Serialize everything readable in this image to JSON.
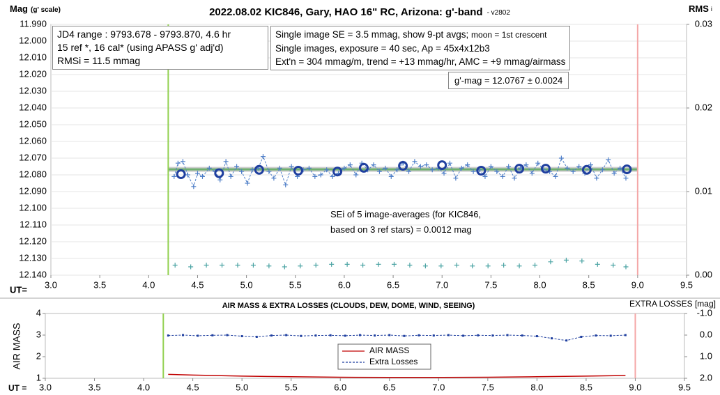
{
  "chart_data": [
    {
      "type": "scatter",
      "title": "2022.08.02 KIC846, Gary, HAO 16\" RC, Arizona: g'-band",
      "title_suffix": "- v2802",
      "y_label": "Mag",
      "y_label_note": "(g' scale)",
      "y2_label": "RMS",
      "y2_label_sub": "i",
      "x_label": "UT=",
      "xlim": [
        3.0,
        9.5
      ],
      "xticks": [
        {
          "value": 3,
          "label": "3.0"
        },
        {
          "value": 3.5,
          "label": "3.5"
        },
        {
          "value": 4,
          "label": "4.0"
        },
        {
          "value": 4.5,
          "label": "4.5"
        },
        {
          "value": 5,
          "label": "5.0"
        },
        {
          "value": 5.5,
          "label": "5.5"
        },
        {
          "value": 6,
          "label": "6.0"
        },
        {
          "value": 6.5,
          "label": "6.5"
        },
        {
          "value": 7,
          "label": "7.0"
        },
        {
          "value": 7.5,
          "label": "7.5"
        },
        {
          "value": 8,
          "label": "8.0"
        },
        {
          "value": 8.5,
          "label": "8.5"
        },
        {
          "value": 9,
          "label": "9.0"
        },
        {
          "value": 9.5,
          "label": "9.5"
        }
      ],
      "ylim": [
        12.14,
        11.99
      ],
      "yticks": [
        {
          "value": 11.99,
          "label": "11.990"
        },
        {
          "value": 12.0,
          "label": "12.000"
        },
        {
          "value": 12.01,
          "label": "12.010"
        },
        {
          "value": 12.02,
          "label": "12.020"
        },
        {
          "value": 12.03,
          "label": "12.030"
        },
        {
          "value": 12.04,
          "label": "12.040"
        },
        {
          "value": 12.05,
          "label": "12.050"
        },
        {
          "value": 12.06,
          "label": "12.060"
        },
        {
          "value": 12.07,
          "label": "12.070"
        },
        {
          "value": 12.08,
          "label": "12.080"
        },
        {
          "value": 12.09,
          "label": "12.090"
        },
        {
          "value": 12.1,
          "label": "12.100"
        },
        {
          "value": 12.11,
          "label": "12.110"
        },
        {
          "value": 12.12,
          "label": "12.120"
        },
        {
          "value": 12.13,
          "label": "12.130"
        },
        {
          "value": 12.14,
          "label": "12.140"
        }
      ],
      "y2lim": [
        0,
        0.03
      ],
      "y2ticks": [
        {
          "value": 0,
          "label": "0.00"
        },
        0.01,
        0.02,
        0.03
      ],
      "grid": true,
      "vlines": [
        {
          "x": 4.2,
          "color": "#92d050"
        },
        {
          "x": 9.0,
          "color": "#f4a6a6"
        }
      ],
      "hlines": [
        {
          "y": 12.0767,
          "color": "#70b070"
        }
      ],
      "series": [
        {
          "marker": "plus",
          "line": "dashed",
          "color": "#4f7fc8",
          "x": [
            4.26,
            4.3,
            4.35,
            4.4,
            4.46,
            4.5,
            4.55,
            4.62,
            4.68,
            4.73,
            4.79,
            4.84,
            4.9,
            4.95,
            5.01,
            5.06,
            5.12,
            5.17,
            5.23,
            5.28,
            5.34,
            5.4,
            5.46,
            5.52,
            5.58,
            5.64,
            5.7,
            5.76,
            5.82,
            5.88,
            5.94,
            6.0,
            6.06,
            6.12,
            6.18,
            6.24,
            6.3,
            6.36,
            6.42,
            6.48,
            6.54,
            6.6,
            6.66,
            6.72,
            6.78,
            6.84,
            6.9,
            6.96,
            7.02,
            7.08,
            7.14,
            7.2,
            7.26,
            7.32,
            7.38,
            7.44,
            7.5,
            7.56,
            7.62,
            7.68,
            7.74,
            7.8,
            7.86,
            7.92,
            7.98,
            8.04,
            8.1,
            8.16,
            8.22,
            8.28,
            8.34,
            8.4,
            8.46,
            8.52,
            8.58,
            8.64,
            8.7,
            8.76,
            8.82,
            8.88
          ],
          "values": [
            12.081,
            12.073,
            12.072,
            12.08,
            12.087,
            12.079,
            12.081,
            12.076,
            12.078,
            12.083,
            12.072,
            12.081,
            12.075,
            12.078,
            12.085,
            12.077,
            12.076,
            12.069,
            12.078,
            12.082,
            12.076,
            12.086,
            12.075,
            12.081,
            12.077,
            12.076,
            12.081,
            12.08,
            12.077,
            12.081,
            12.079,
            12.076,
            12.074,
            12.08,
            12.073,
            12.077,
            12.074,
            12.078,
            12.076,
            12.081,
            12.077,
            12.073,
            12.078,
            12.072,
            12.075,
            12.074,
            12.077,
            12.076,
            12.079,
            12.073,
            12.082,
            12.076,
            12.074,
            12.078,
            12.077,
            12.081,
            12.075,
            12.078,
            12.081,
            12.075,
            12.082,
            12.076,
            12.074,
            12.079,
            12.073,
            12.077,
            12.078,
            12.081,
            12.07,
            12.076,
            12.078,
            12.075,
            12.079,
            12.074,
            12.082,
            12.077,
            12.071,
            12.079,
            12.076,
            12.082
          ]
        },
        {
          "marker": "circle",
          "line": "none",
          "color": "#1f3f9f",
          "x": [
            4.33,
            4.72,
            5.13,
            5.53,
            5.93,
            6.2,
            6.6,
            7.0,
            7.4,
            7.79,
            8.06,
            8.48,
            8.89
          ],
          "values": [
            12.0796,
            12.079,
            12.077,
            12.0775,
            12.078,
            12.0758,
            12.0746,
            12.0742,
            12.0775,
            12.0763,
            12.0763,
            12.077,
            12.0767
          ]
        },
        {
          "marker": "plus",
          "line": "none",
          "color": "#4aa3a3",
          "axis": "y2",
          "x": [
            4.27,
            4.43,
            4.59,
            4.75,
            4.91,
            5.07,
            5.23,
            5.39,
            5.55,
            5.71,
            5.87,
            6.03,
            6.19,
            6.35,
            6.51,
            6.67,
            6.83,
            6.99,
            7.15,
            7.31,
            7.47,
            7.63,
            7.79,
            7.95,
            8.11,
            8.27,
            8.43,
            8.59,
            8.75,
            8.88
          ],
          "values": [
            0.0012,
            0.001,
            0.0012,
            0.0012,
            0.0012,
            0.0012,
            0.0011,
            0.001,
            0.0011,
            0.0012,
            0.0013,
            0.0013,
            0.0012,
            0.0013,
            0.0013,
            0.0012,
            0.0011,
            0.0011,
            0.0012,
            0.0011,
            0.0011,
            0.0012,
            0.0011,
            0.0012,
            0.0016,
            0.0018,
            0.0017,
            0.0013,
            0.0012,
            0.001
          ]
        }
      ],
      "annotations": [
        {
          "lines": [
            "JD4 range : 9793.678 - 9793.870,  4.6 hr",
            "15 ref *, 16 cal* (using APASS g' adj'd)",
            "RMSi = 11.5 mmag"
          ]
        },
        {
          "lines": [
            "Single image SE = 3.5 mmag, show  9-pt avgs;",
            "Single images, exposure = 40 sec, Ap = 45x4x12b3",
            "Ext'n = 304 mmag/m, trend = +13 mmag/hr, AMC = +9 mmag/airmass"
          ],
          "note": "moon = 1st crescent"
        },
        {
          "lines": [
            "g'-mag = 12.0767 ± 0.0024"
          ]
        },
        {
          "lines": [
            "SEi of 5 image-averages (for KIC846,",
            "based on 3 ref stars) = 0.0012 mag"
          ]
        }
      ]
    },
    {
      "type": "line",
      "title": "AIR MASS & EXTRA LOSSES (CLOUDS, DEW, DOME, WIND, SEEING)",
      "y_label": "AIR MASS",
      "y2_label": "EXTRA LOSSES [mag]",
      "x_label": "UT =",
      "xlim": [
        3.0,
        9.5
      ],
      "xticks": [
        {
          "value": 3,
          "label": "3.0"
        },
        {
          "value": 3.5,
          "label": "3.5"
        },
        {
          "value": 4,
          "label": "4.0"
        },
        {
          "value": 4.5,
          "label": "4.5"
        },
        {
          "value": 5,
          "label": "5.0"
        },
        {
          "value": 5.5,
          "label": "5.5"
        },
        {
          "value": 6,
          "label": "6.0"
        },
        {
          "value": 6.5,
          "label": "6.5"
        },
        {
          "value": 7,
          "label": "7.0"
        },
        {
          "value": 7.5,
          "label": "7.5"
        },
        {
          "value": 8,
          "label": "8.0"
        },
        {
          "value": 8.5,
          "label": "8.5"
        },
        {
          "value": 9,
          "label": "9.0"
        },
        {
          "value": 9.5,
          "label": "9.5"
        }
      ],
      "ylim": [
        1,
        4
      ],
      "yticks": [
        1,
        2,
        3,
        4
      ],
      "y2lim": [
        2.0,
        -1.0
      ],
      "y2ticks": [
        {
          "value": -1,
          "label": "-1.0"
        },
        {
          "value": 0,
          "label": "0.0"
        },
        {
          "value": 1,
          "label": "1.0"
        },
        {
          "value": 2,
          "label": "2.0"
        }
      ],
      "grid": false,
      "legend": "center",
      "vlines": [
        {
          "x": 4.2,
          "color": "#92d050"
        },
        {
          "x": 9.0,
          "color": "#f4a6a6"
        }
      ],
      "hlines": [],
      "series": [
        {
          "name": "AIR MASS",
          "marker": "none",
          "line": "solid",
          "color": "#c00000",
          "x": [
            4.25,
            4.5,
            5.0,
            5.5,
            6.0,
            6.5,
            7.0,
            7.5,
            8.0,
            8.5,
            8.9
          ],
          "values": [
            1.18,
            1.15,
            1.1,
            1.07,
            1.05,
            1.04,
            1.04,
            1.05,
            1.07,
            1.1,
            1.13
          ]
        },
        {
          "name": "Extra Losses",
          "marker": "dot",
          "line": "dashed",
          "color": "#1f3f9f",
          "axis": "y2",
          "x": [
            4.25,
            4.4,
            4.55,
            4.7,
            4.85,
            5.0,
            5.15,
            5.3,
            5.45,
            5.6,
            5.75,
            5.9,
            6.05,
            6.2,
            6.35,
            6.5,
            6.65,
            6.8,
            6.95,
            7.1,
            7.25,
            7.4,
            7.55,
            7.7,
            7.85,
            8.0,
            8.15,
            8.3,
            8.45,
            8.6,
            8.75,
            8.9
          ],
          "values": [
            0.02,
            0.0,
            0.03,
            0.01,
            0.0,
            0.05,
            0.08,
            0.02,
            0.0,
            0.04,
            0.02,
            0.01,
            0.03,
            0.0,
            0.02,
            0.0,
            0.04,
            0.01,
            0.02,
            0.0,
            0.03,
            0.01,
            0.02,
            0.0,
            0.02,
            0.05,
            0.15,
            0.25,
            0.08,
            0.02,
            0.03,
            0.0
          ]
        }
      ]
    }
  ]
}
